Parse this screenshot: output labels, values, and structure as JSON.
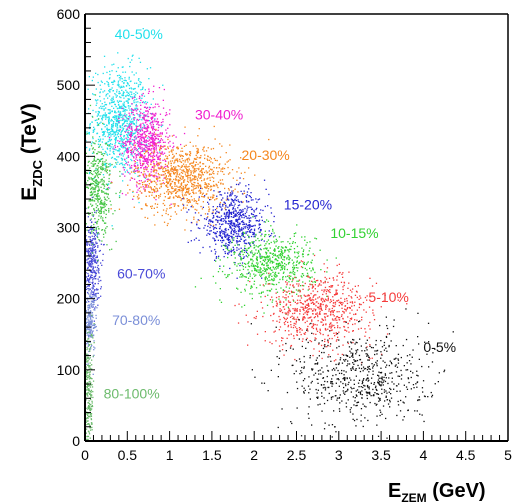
{
  "chart_data": {
    "type": "scatter",
    "title": "",
    "xlabel": {
      "main": "E",
      "sub": "ZEM",
      "unit": " (GeV)"
    },
    "ylabel": {
      "main": "E",
      "sub": "ZDC",
      "unit": " (TeV)"
    },
    "xlim": [
      0,
      5
    ],
    "ylim": [
      0,
      600
    ],
    "x_ticks": [
      {
        "value": 0,
        "label": "0"
      },
      {
        "value": 0.5,
        "label": "0.5"
      },
      {
        "value": 1,
        "label": "1"
      },
      {
        "value": 1.5,
        "label": "1.5"
      },
      {
        "value": 2,
        "label": "2"
      },
      {
        "value": 2.5,
        "label": "2.5"
      },
      {
        "value": 3,
        "label": "3"
      },
      {
        "value": 3.5,
        "label": "3.5"
      },
      {
        "value": 4,
        "label": "4"
      },
      {
        "value": 4.5,
        "label": "4.5"
      },
      {
        "value": 5,
        "label": "5"
      }
    ],
    "y_ticks": [
      {
        "value": 0,
        "label": "0"
      },
      {
        "value": 100,
        "label": "100"
      },
      {
        "value": 200,
        "label": "200"
      },
      {
        "value": 300,
        "label": "300"
      },
      {
        "value": 400,
        "label": "400"
      },
      {
        "value": 500,
        "label": "500"
      },
      {
        "value": 600,
        "label": "600"
      }
    ],
    "grid": false,
    "series": [
      {
        "name": "40-50%",
        "color": "#22e0ec",
        "label_pos": {
          "x": 0.35,
          "y": 565
        },
        "cloud": {
          "x_center": 0.4,
          "x_spread": 0.17,
          "y_center": 450,
          "y_spread": 38,
          "count": 900
        }
      },
      {
        "name": "30-40%",
        "color": "#f01ecf",
        "label_pos": {
          "x": 1.3,
          "y": 452
        },
        "cloud": {
          "x_center": 0.72,
          "x_spread": 0.14,
          "y_center": 420,
          "y_spread": 30,
          "count": 700
        }
      },
      {
        "name": "20-30%",
        "color": "#f5871f",
        "label_pos": {
          "x": 1.85,
          "y": 395
        },
        "cloud": {
          "x_center": 1.15,
          "x_spread": 0.28,
          "y_center": 370,
          "y_spread": 25,
          "count": 900
        }
      },
      {
        "name": "15-20%",
        "color": "#2525d0",
        "label_pos": {
          "x": 2.35,
          "y": 325
        },
        "cloud": {
          "x_center": 1.75,
          "x_spread": 0.2,
          "y_center": 305,
          "y_spread": 22,
          "count": 650
        }
      },
      {
        "name": "10-15%",
        "color": "#32d232",
        "label_pos": {
          "x": 2.9,
          "y": 285
        },
        "cloud": {
          "x_center": 2.2,
          "x_spread": 0.25,
          "y_center": 250,
          "y_spread": 22,
          "count": 650
        }
      },
      {
        "name": "5-10%",
        "color": "#f53c3c",
        "label_pos": {
          "x": 3.35,
          "y": 195
        },
        "cloud": {
          "x_center": 2.75,
          "x_spread": 0.32,
          "y_center": 185,
          "y_spread": 25,
          "count": 700
        }
      },
      {
        "name": "0-5%",
        "color": "#111111",
        "label_pos": {
          "x": 4.0,
          "y": 125
        },
        "cloud": {
          "x_center": 3.25,
          "x_spread": 0.4,
          "y_center": 90,
          "y_spread": 35,
          "count": 650
        }
      },
      {
        "name": "60-70%",
        "color": "#4a4ad8",
        "label_pos": {
          "x": 0.38,
          "y": 228
        },
        "cloud": {
          "x_center": 0.07,
          "x_spread": 0.05,
          "y_center": 255,
          "y_spread": 30,
          "count": 350
        }
      },
      {
        "name": "70-80%",
        "color": "#7b8fd8",
        "label_pos": {
          "x": 0.32,
          "y": 163
        },
        "cloud": {
          "x_center": 0.05,
          "x_spread": 0.04,
          "y_center": 170,
          "y_spread": 22,
          "count": 230
        }
      },
      {
        "name": "80-100%",
        "color": "#6dbb6d",
        "label_pos": {
          "x": 0.22,
          "y": 60
        },
        "cloud": {
          "x_center": 0.03,
          "x_spread": 0.03,
          "y_center": 70,
          "y_spread": 45,
          "count": 300
        }
      },
      {
        "name": "",
        "color": "#49c649",
        "label_pos": null,
        "cloud": {
          "x_center": 0.15,
          "x_spread": 0.08,
          "y_center": 355,
          "y_spread": 35,
          "count": 420
        }
      }
    ]
  }
}
